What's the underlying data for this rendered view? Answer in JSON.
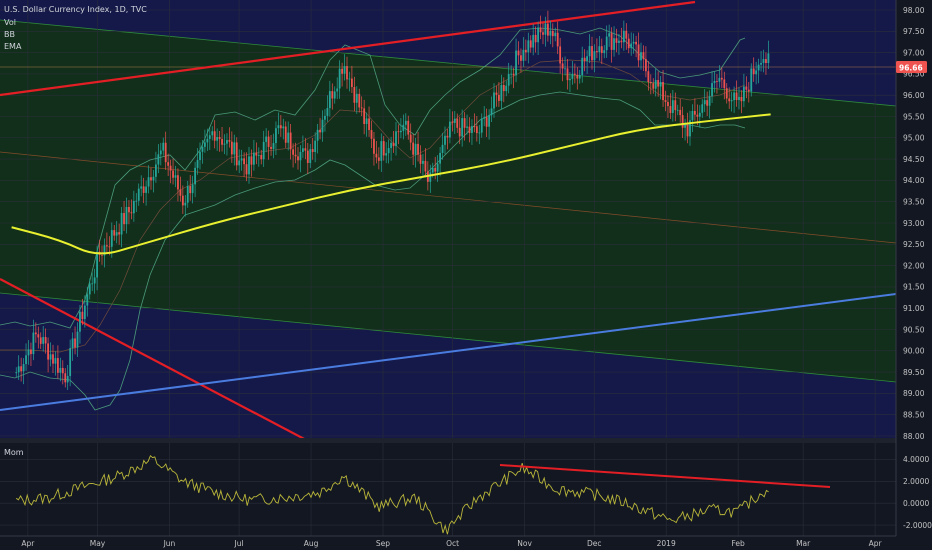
{
  "header": {
    "title": "U.S. Dollar Currency Index, 1D, TVC",
    "indicators": [
      "Vol",
      "BB",
      "EMA"
    ],
    "osc_label": "Mom"
  },
  "colors": {
    "background": "#131722",
    "channel_outer": "#15194a",
    "channel_inner": "#123018",
    "bull": "#26a69a",
    "bear": "#ef5350",
    "ema": "#e8f030",
    "bb": "#4a9a7a",
    "trend_red": "#e31e24",
    "trend_blue": "#4a7ce0",
    "momentum": "#b9b63a",
    "price_tag": "#ef5350"
  },
  "chart_data": [
    {
      "type": "candlestick",
      "title": "U.S. Dollar Currency Index, 1D, TVC",
      "x_ticks": [
        "Apr",
        "May",
        "Jun",
        "Jul",
        "Aug",
        "Sep",
        "Oct",
        "Nov",
        "Dec",
        "2019",
        "Feb",
        "Mar",
        "Apr"
      ],
      "y_ticks": [
        98.0,
        97.5,
        97.0,
        96.5,
        96.0,
        95.5,
        95.0,
        94.5,
        94.0,
        93.5,
        93.0,
        92.5,
        92.0,
        91.5,
        91.0,
        90.5,
        90.0,
        89.5,
        89.0,
        88.5,
        88.0
      ],
      "ylim": [
        88.0,
        98.0
      ],
      "last_price": 96.66,
      "close_path": [
        {
          "x": "2018-03-27",
          "y": 89.5
        },
        {
          "x": "2018-04-05",
          "y": 90.4
        },
        {
          "x": "2018-04-17",
          "y": 89.4
        },
        {
          "x": "2018-04-25",
          "y": 91.0
        },
        {
          "x": "2018-05-02",
          "y": 92.3
        },
        {
          "x": "2018-05-15",
          "y": 93.3
        },
        {
          "x": "2018-05-29",
          "y": 94.7
        },
        {
          "x": "2018-06-07",
          "y": 93.5
        },
        {
          "x": "2018-06-20",
          "y": 95.2
        },
        {
          "x": "2018-07-05",
          "y": 94.3
        },
        {
          "x": "2018-07-18",
          "y": 95.2
        },
        {
          "x": "2018-07-30",
          "y": 94.5
        },
        {
          "x": "2018-08-15",
          "y": 96.8
        },
        {
          "x": "2018-08-29",
          "y": 94.6
        },
        {
          "x": "2018-09-10",
          "y": 95.3
        },
        {
          "x": "2018-09-21",
          "y": 93.9
        },
        {
          "x": "2018-10-01",
          "y": 95.3
        },
        {
          "x": "2018-10-12",
          "y": 95.1
        },
        {
          "x": "2018-10-31",
          "y": 97.1
        },
        {
          "x": "2018-11-12",
          "y": 97.6
        },
        {
          "x": "2018-11-20",
          "y": 96.4
        },
        {
          "x": "2018-12-03",
          "y": 97.2
        },
        {
          "x": "2018-12-14",
          "y": 97.4
        },
        {
          "x": "2018-12-28",
          "y": 96.2
        },
        {
          "x": "2019-01-10",
          "y": 95.2
        },
        {
          "x": "2019-01-24",
          "y": 96.4
        },
        {
          "x": "2019-02-01",
          "y": 95.7
        },
        {
          "x": "2019-02-11",
          "y": 97.0
        },
        {
          "x": "2019-02-15",
          "y": 96.66
        }
      ],
      "ema_path": [
        {
          "x": "2018-03-25",
          "y": 92.9
        },
        {
          "x": "2018-04-15",
          "y": 92.6
        },
        {
          "x": "2018-05-01",
          "y": 92.2
        },
        {
          "x": "2018-05-20",
          "y": 92.5
        },
        {
          "x": "2018-06-20",
          "y": 93.0
        },
        {
          "x": "2018-07-20",
          "y": 93.4
        },
        {
          "x": "2018-08-20",
          "y": 93.8
        },
        {
          "x": "2018-09-20",
          "y": 94.1
        },
        {
          "x": "2018-10-20",
          "y": 94.4
        },
        {
          "x": "2018-11-20",
          "y": 94.8
        },
        {
          "x": "2018-12-20",
          "y": 95.2
        },
        {
          "x": "2019-01-20",
          "y": 95.4
        },
        {
          "x": "2019-02-15",
          "y": 95.55
        }
      ]
    },
    {
      "type": "line",
      "title": "Mom",
      "y_ticks": [
        4.0,
        2.0,
        0.0,
        -2.0
      ],
      "ylim": [
        -3.0,
        5.5
      ],
      "series": [
        {
          "values": [
            {
              "x": "2018-03-27",
              "y": 0.2
            },
            {
              "x": "2018-04-10",
              "y": 0.5
            },
            {
              "x": "2018-04-25",
              "y": 1.5
            },
            {
              "x": "2018-05-10",
              "y": 2.5
            },
            {
              "x": "2018-05-25",
              "y": 4.0
            },
            {
              "x": "2018-06-07",
              "y": 2.0
            },
            {
              "x": "2018-06-20",
              "y": 1.0
            },
            {
              "x": "2018-07-05",
              "y": 0.3
            },
            {
              "x": "2018-07-20",
              "y": 0.5
            },
            {
              "x": "2018-08-05",
              "y": 1.0
            },
            {
              "x": "2018-08-15",
              "y": 2.5
            },
            {
              "x": "2018-08-30",
              "y": -0.3
            },
            {
              "x": "2018-09-15",
              "y": 0.5
            },
            {
              "x": "2018-09-28",
              "y": -2.5
            },
            {
              "x": "2018-10-12",
              "y": 0.5
            },
            {
              "x": "2018-10-31",
              "y": 3.2
            },
            {
              "x": "2018-11-15",
              "y": 1.3
            },
            {
              "x": "2018-12-01",
              "y": 0.8
            },
            {
              "x": "2018-12-15",
              "y": 0.0
            },
            {
              "x": "2019-01-03",
              "y": -1.6
            },
            {
              "x": "2019-01-20",
              "y": -0.6
            },
            {
              "x": "2019-02-01",
              "y": -0.8
            },
            {
              "x": "2019-02-15",
              "y": 1.6
            }
          ]
        }
      ]
    }
  ]
}
